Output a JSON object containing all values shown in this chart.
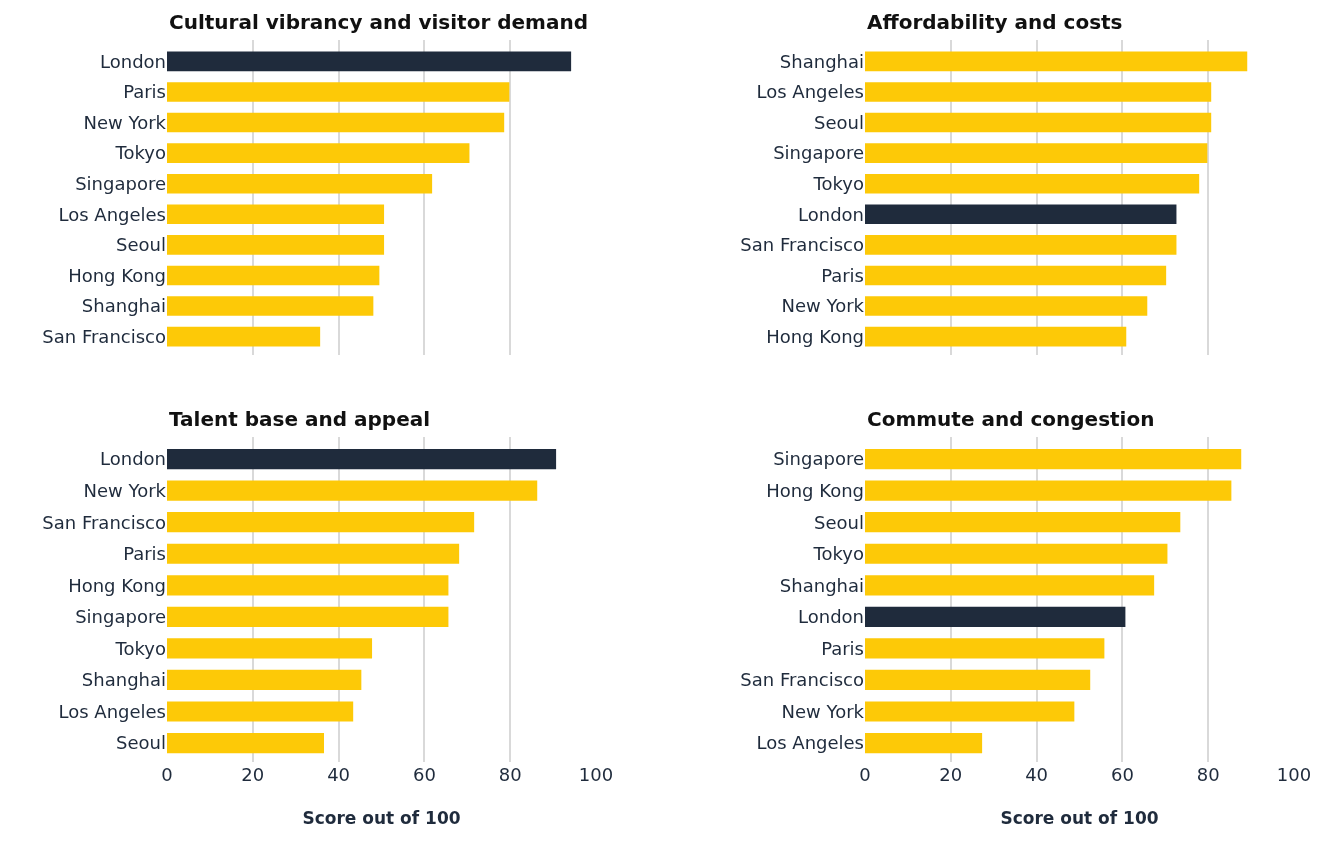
{
  "chart_data": [
    {
      "type": "bar",
      "orientation": "horizontal",
      "title": "Cultural vibrancy and visitor demand",
      "categories": [
        "London",
        "Paris",
        "New York",
        "Tokyo",
        "Singapore",
        "Los Angeles",
        "Seoul",
        "Hong Kong",
        "Shanghai",
        "San Francisco"
      ],
      "values": [
        94.2,
        79.8,
        78.6,
        70.5,
        61.8,
        50.6,
        50.6,
        49.5,
        48.1,
        35.7
      ],
      "colors": [
        "#1f2b3c",
        "#fdc907",
        "#fdc907",
        "#fdc907",
        "#fdc907",
        "#fdc907",
        "#fdc907",
        "#fdc907",
        "#fdc907",
        "#fdc907"
      ],
      "xlim": [
        0,
        100
      ],
      "xticks": [
        0,
        20,
        40,
        60,
        80,
        100
      ],
      "grid": "x",
      "tick_labels": "y"
    },
    {
      "type": "bar",
      "orientation": "horizontal",
      "title": "Affordability and costs",
      "categories": [
        "Shanghai",
        "Los Angeles",
        "Seoul",
        "Singapore",
        "Tokyo",
        "London",
        "San Francisco",
        "Paris",
        "New York",
        "Hong Kong"
      ],
      "values": [
        89.1,
        80.7,
        80.7,
        79.8,
        77.9,
        72.6,
        72.6,
        70.2,
        65.8,
        60.9
      ],
      "colors": [
        "#fdc907",
        "#fdc907",
        "#fdc907",
        "#fdc907",
        "#fdc907",
        "#1f2b3c",
        "#fdc907",
        "#fdc907",
        "#fdc907",
        "#fdc907"
      ],
      "xlim": [
        0,
        100
      ],
      "xticks": [
        0,
        20,
        40,
        60,
        80,
        100
      ],
      "grid": "x",
      "tick_labels": "y"
    },
    {
      "type": "bar",
      "orientation": "horizontal",
      "title": "Talent base and appeal",
      "categories": [
        "London",
        "New York",
        "San Francisco",
        "Paris",
        "Hong Kong",
        "Singapore",
        "Tokyo",
        "Shanghai",
        "Los Angeles",
        "Seoul"
      ],
      "values": [
        90.7,
        86.3,
        71.6,
        68.1,
        65.6,
        65.6,
        47.8,
        45.3,
        43.4,
        36.6
      ],
      "colors": [
        "#1f2b3c",
        "#fdc907",
        "#fdc907",
        "#fdc907",
        "#fdc907",
        "#fdc907",
        "#fdc907",
        "#fdc907",
        "#fdc907",
        "#fdc907"
      ],
      "xlim": [
        0,
        100
      ],
      "xticks": [
        0,
        20,
        40,
        60,
        80,
        100
      ],
      "grid": "x",
      "xlabel": "Score out of 100"
    },
    {
      "type": "bar",
      "orientation": "horizontal",
      "title": "Commute and congestion",
      "categories": [
        "Singapore",
        "Hong Kong",
        "Seoul",
        "Tokyo",
        "Shanghai",
        "London",
        "Paris",
        "San Francisco",
        "New York",
        "Los Angeles"
      ],
      "values": [
        87.7,
        85.4,
        73.5,
        70.5,
        67.4,
        60.7,
        55.8,
        52.5,
        48.8,
        27.3
      ],
      "colors": [
        "#fdc907",
        "#fdc907",
        "#fdc907",
        "#fdc907",
        "#fdc907",
        "#1f2b3c",
        "#fdc907",
        "#fdc907",
        "#fdc907",
        "#fdc907"
      ],
      "xlim": [
        0,
        100
      ],
      "xticks": [
        0,
        20,
        40,
        60,
        80,
        100
      ],
      "grid": "x",
      "xlabel": "Score out of 100"
    }
  ]
}
